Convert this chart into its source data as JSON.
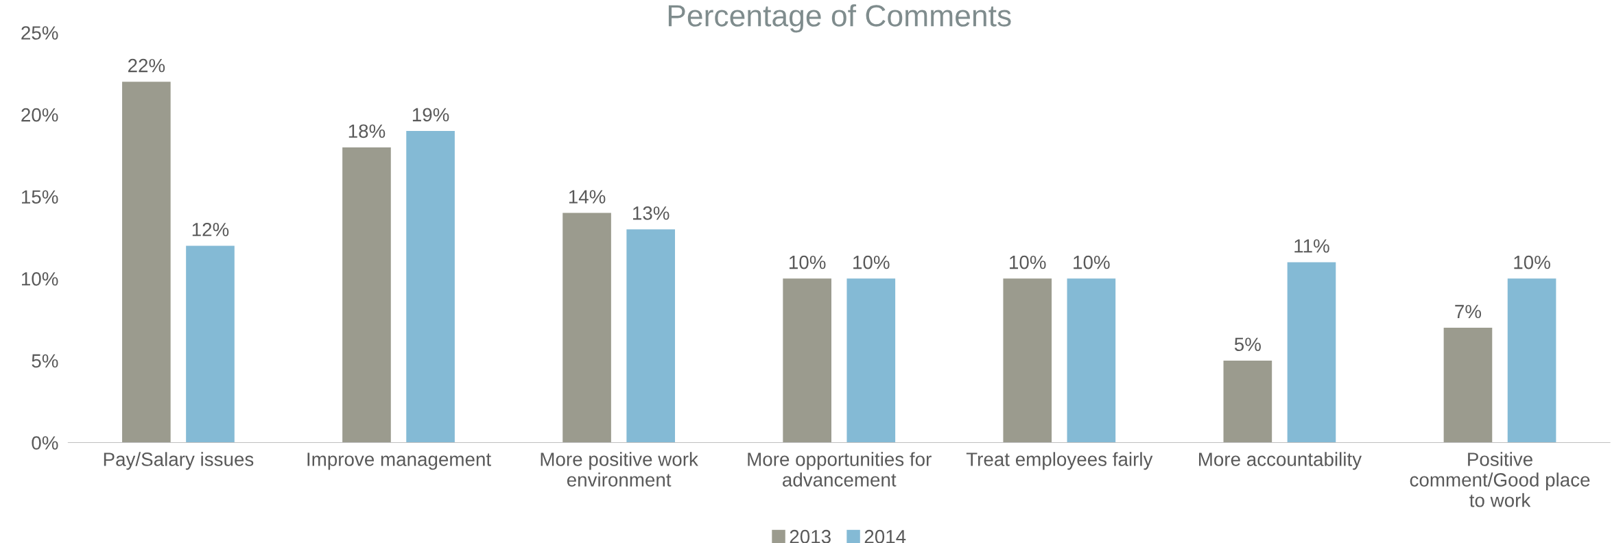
{
  "chart_data": {
    "type": "bar",
    "title": "Percentage of Comments",
    "categories": [
      "Pay/Salary issues",
      "Improve management",
      "More positive work\nenvironment",
      "More opportunities for\nadvancement",
      "Treat employees fairly",
      "More accountability",
      "Positive\ncomment/Good place\nto work"
    ],
    "series": [
      {
        "name": "2013",
        "color": "#9b9b8e",
        "values": [
          22,
          18,
          14,
          10,
          10,
          5,
          7
        ],
        "value_labels": [
          "22%",
          "18%",
          "14%",
          "10%",
          "10%",
          "5%",
          "7%"
        ]
      },
      {
        "name": "2014",
        "color": "#84bad5",
        "values": [
          12,
          19,
          13,
          10,
          10,
          11,
          10
        ],
        "value_labels": [
          "12%",
          "19%",
          "13%",
          "10%",
          "10%",
          "11%",
          "10%"
        ]
      }
    ],
    "ylim": [
      0,
      25
    ],
    "yticks": [
      {
        "value": 0,
        "label": "0%"
      },
      {
        "value": 5,
        "label": "5%"
      },
      {
        "value": 10,
        "label": "10%"
      },
      {
        "value": 15,
        "label": "15%"
      },
      {
        "value": 20,
        "label": "20%"
      },
      {
        "value": 25,
        "label": "25%"
      }
    ],
    "grid": false,
    "legend": "bottom"
  }
}
